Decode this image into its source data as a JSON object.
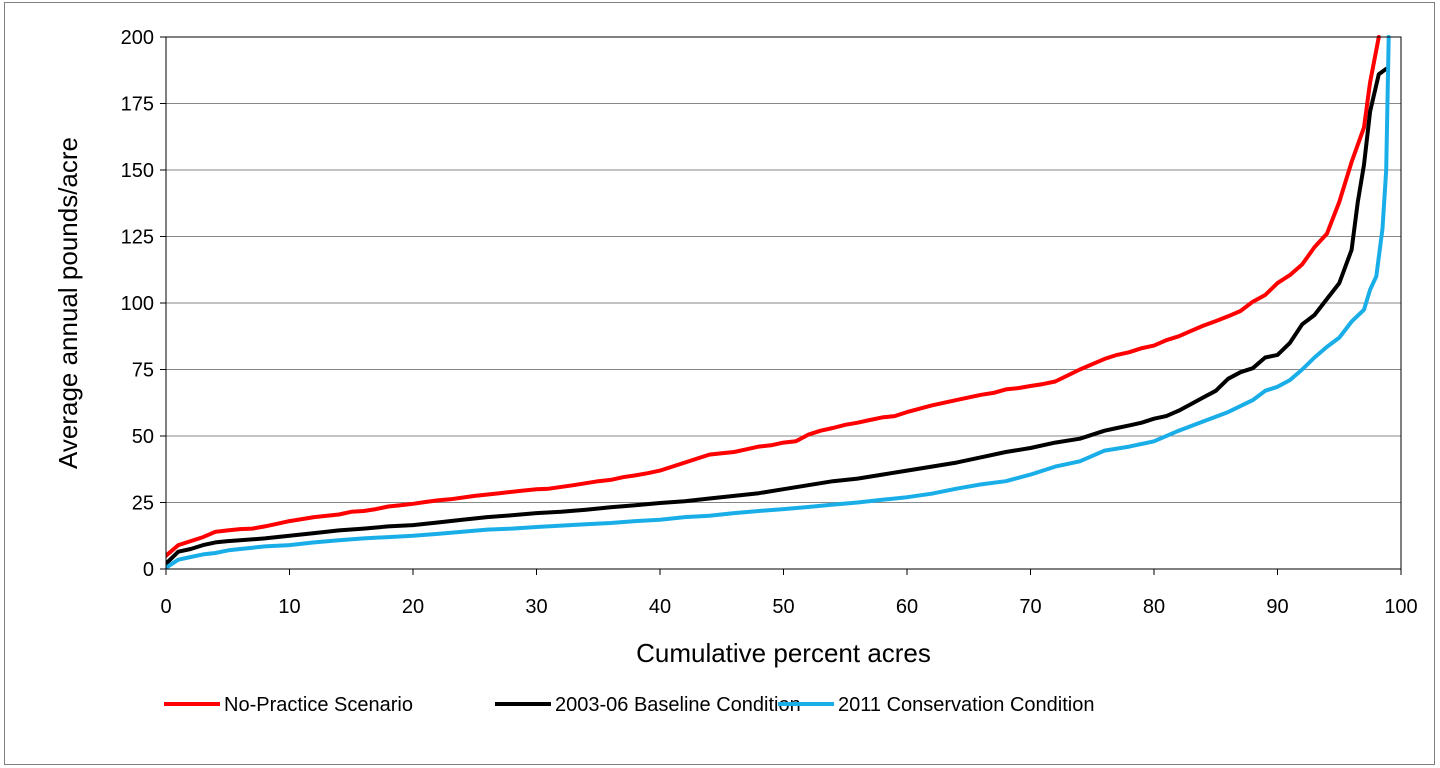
{
  "chart_data": {
    "type": "line",
    "title": "",
    "xlabel": "Cumulative percent acres",
    "ylabel": "Average annual pounds/acre",
    "xlim": [
      0,
      100
    ],
    "ylim": [
      0,
      200
    ],
    "x_ticks": [
      "0",
      "10",
      "20",
      "30",
      "40",
      "50",
      "60",
      "70",
      "80",
      "90",
      "100"
    ],
    "y_ticks": [
      "0",
      "25",
      "50",
      "75",
      "100",
      "125",
      "150",
      "175",
      "200"
    ],
    "grid": "horizontal",
    "legend_position": "bottom",
    "series": [
      {
        "name": "No-Practice Scenario",
        "color": "#ff0000",
        "x": [
          0,
          1,
          2,
          3,
          4,
          5,
          6,
          7,
          8,
          9,
          10,
          12,
          14,
          15,
          16,
          17,
          18,
          19,
          20,
          21,
          22,
          23,
          25,
          27,
          29,
          30,
          31,
          33,
          35,
          36,
          37,
          38,
          39,
          40,
          42,
          43,
          44,
          45,
          46,
          47,
          48,
          49,
          50,
          51,
          52,
          53,
          54,
          55,
          56,
          57,
          58,
          59,
          60,
          62,
          64,
          66,
          67,
          68,
          69,
          70,
          71,
          72,
          74,
          75,
          76,
          77,
          78,
          79,
          80,
          81,
          82,
          83,
          84,
          85,
          86,
          87,
          88,
          89,
          90,
          91,
          92,
          93,
          94,
          95,
          96,
          97,
          97.5,
          98.2
        ],
        "y": [
          5,
          9,
          10.5,
          12,
          14,
          14.5,
          15,
          15.2,
          16,
          17,
          18,
          19.5,
          20.5,
          21.5,
          21.8,
          22.5,
          23.5,
          24,
          24.5,
          25.2,
          25.8,
          26.2,
          27.5,
          28.5,
          29.5,
          30,
          30.2,
          31.5,
          33,
          33.5,
          34.5,
          35.2,
          36,
          37,
          40,
          41.5,
          43,
          43.5,
          44,
          45,
          46,
          46.5,
          47.5,
          48,
          50.5,
          52,
          53,
          54.2,
          55,
          56,
          57,
          57.5,
          59,
          61.5,
          63.5,
          65.5,
          66.2,
          67.5,
          68,
          68.8,
          69.5,
          70.5,
          75,
          77,
          79,
          80.5,
          81.5,
          83,
          84,
          86,
          87.5,
          89.5,
          91.5,
          93.2,
          95,
          97,
          100.5,
          103,
          107.5,
          110.5,
          114.5,
          121,
          126,
          138,
          153,
          166,
          183,
          200
        ]
      },
      {
        "name": "2003-06 Baseline Condition",
        "color": "#000000",
        "x": [
          0,
          1,
          2,
          3,
          4,
          5,
          6,
          8,
          10,
          12,
          14,
          16,
          18,
          20,
          22,
          24,
          26,
          28,
          30,
          32,
          34,
          36,
          38,
          40,
          42,
          44,
          46,
          48,
          50,
          52,
          54,
          56,
          58,
          60,
          62,
          64,
          66,
          68,
          70,
          72,
          74,
          75,
          76,
          77,
          78,
          79,
          80,
          81,
          82,
          83,
          84,
          85,
          86,
          87,
          88,
          89,
          90,
          91,
          92,
          93,
          94,
          95,
          96,
          96.5,
          97,
          97.5,
          98.2,
          98.8
        ],
        "y": [
          2,
          6.5,
          7.5,
          9,
          10,
          10.5,
          10.8,
          11.5,
          12.5,
          13.5,
          14.5,
          15.2,
          16,
          16.5,
          17.5,
          18.5,
          19.5,
          20.2,
          21,
          21.5,
          22.3,
          23.2,
          24,
          24.8,
          25.5,
          26.5,
          27.5,
          28.5,
          30,
          31.5,
          33,
          34,
          35.5,
          37,
          38.5,
          40,
          42,
          44,
          45.5,
          47.5,
          49,
          50.5,
          52,
          53,
          54,
          55,
          56.5,
          57.5,
          59.5,
          62,
          64.5,
          67,
          71.5,
          74,
          75.5,
          79.5,
          80.5,
          85,
          92,
          95.5,
          101.5,
          107.5,
          120,
          138,
          152,
          172,
          186,
          188
        ]
      },
      {
        "name": "2011 Conservation Condition",
        "color": "#1aaee8",
        "x": [
          0,
          1,
          2,
          3,
          4,
          5,
          6,
          7,
          8,
          10,
          12,
          14,
          16,
          18,
          20,
          22,
          24,
          26,
          28,
          30,
          32,
          34,
          36,
          38,
          40,
          42,
          44,
          46,
          48,
          50,
          52,
          54,
          56,
          58,
          60,
          62,
          64,
          66,
          68,
          70,
          72,
          74,
          76,
          78,
          80,
          82,
          84,
          86,
          88,
          89,
          90,
          91,
          92,
          93,
          94,
          95,
          96,
          97,
          97.5,
          98,
          98.5,
          98.8,
          99
        ],
        "y": [
          0.5,
          3.5,
          4.5,
          5.5,
          6,
          7,
          7.5,
          8,
          8.5,
          9,
          10,
          10.8,
          11.5,
          12,
          12.5,
          13.2,
          14,
          14.8,
          15.2,
          15.8,
          16.3,
          16.8,
          17.3,
          18,
          18.5,
          19.5,
          20,
          21,
          21.8,
          22.5,
          23.3,
          24.2,
          25,
          26,
          27,
          28.3,
          30.2,
          31.8,
          33,
          35.5,
          38.5,
          40.5,
          44.5,
          46,
          48,
          52,
          55.5,
          59,
          63.5,
          67,
          68.5,
          71,
          75,
          79.5,
          83.5,
          87,
          93,
          97.5,
          105,
          110,
          128,
          150,
          200
        ]
      }
    ]
  }
}
